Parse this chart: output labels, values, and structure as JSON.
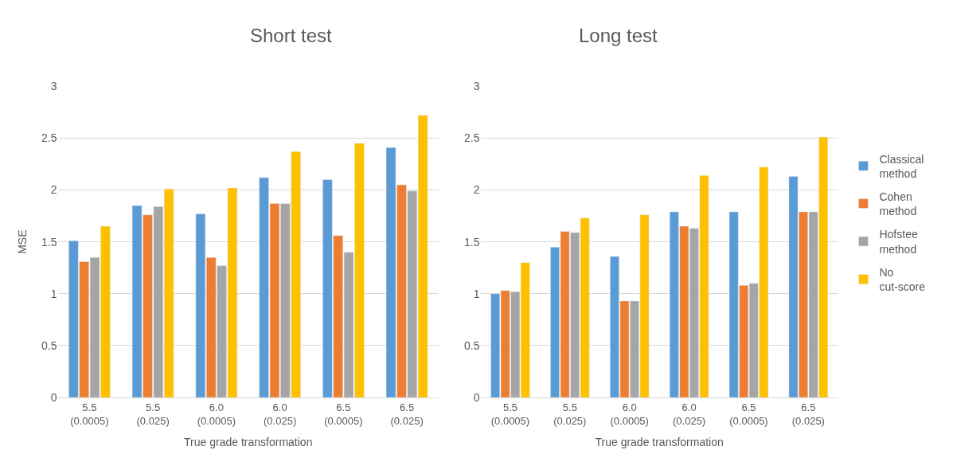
{
  "chart_data": [
    {
      "type": "bar",
      "title": "Short test",
      "xlabel": "True grade transformation",
      "ylabel": "MSE",
      "categories": [
        "5.5\n(0.0005)",
        "5.5\n(0.025)",
        "6.0\n(0.0005)",
        "6.0\n(0.025)",
        "6.5\n(0.0005)",
        "6.5\n(0.025)"
      ],
      "series": [
        {
          "name": "Classical method",
          "color": "#5b9bd5",
          "values": [
            1.51,
            1.85,
            1.77,
            2.12,
            2.1,
            2.41
          ]
        },
        {
          "name": "Cohen method",
          "color": "#ed7d31",
          "values": [
            1.31,
            1.76,
            1.35,
            1.87,
            1.56,
            2.05
          ]
        },
        {
          "name": "Hofstee method",
          "color": "#a5a5a5",
          "values": [
            1.35,
            1.84,
            1.27,
            1.87,
            1.4,
            1.99
          ]
        },
        {
          "name": "No cut-score",
          "color": "#ffc000",
          "values": [
            1.65,
            2.01,
            2.02,
            2.37,
            2.45,
            2.72
          ]
        }
      ],
      "ylim": [
        0,
        3
      ],
      "yticks": [
        0,
        0.5,
        1,
        1.5,
        2,
        2.5,
        3
      ],
      "grid": "y",
      "legend": "right"
    },
    {
      "type": "bar",
      "title": "Long test",
      "xlabel": "True grade transformation",
      "categories": [
        "5.5\n(0.0005)",
        "5.5\n(0.025)",
        "6.0\n(0.0005)",
        "6.0\n(0.025)",
        "6.5\n(0.0005)",
        "6.5\n(0.025)"
      ],
      "series": [
        {
          "name": "Classical method",
          "color": "#5b9bd5",
          "values": [
            1.0,
            1.45,
            1.36,
            1.79,
            1.79,
            2.13
          ]
        },
        {
          "name": "Cohen method",
          "color": "#ed7d31",
          "values": [
            1.03,
            1.6,
            0.93,
            1.65,
            1.08,
            1.79
          ]
        },
        {
          "name": "Hofstee method",
          "color": "#a5a5a5",
          "values": [
            1.02,
            1.59,
            0.93,
            1.63,
            1.1,
            1.79
          ]
        },
        {
          "name": "No cut-score",
          "color": "#ffc000",
          "values": [
            1.3,
            1.73,
            1.76,
            2.14,
            2.22,
            2.51
          ]
        }
      ],
      "ylim": [
        0,
        3
      ],
      "yticks": [
        0,
        0.5,
        1,
        1.5,
        2,
        2.5,
        3
      ],
      "grid": "y",
      "legend": "right"
    }
  ]
}
